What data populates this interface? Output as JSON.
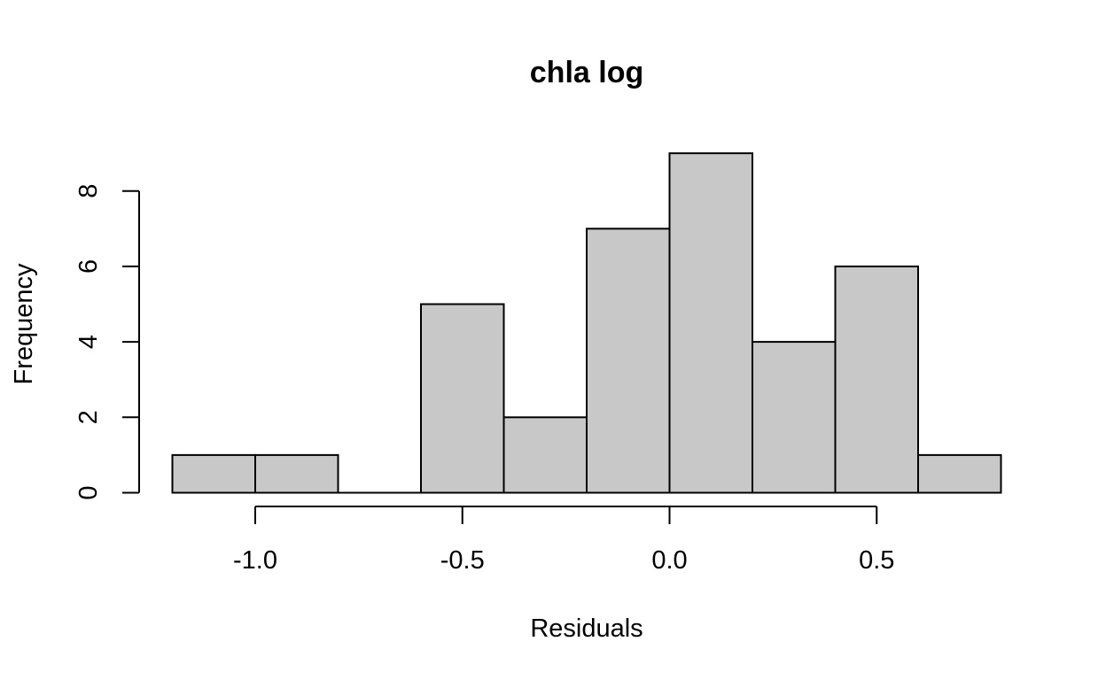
{
  "chart_data": {
    "type": "bar",
    "title": "chla log",
    "xlabel": "Residuals",
    "ylabel": "Frequency",
    "bins": [
      {
        "start": -1.2,
        "end": -1.0,
        "count": 1
      },
      {
        "start": -1.0,
        "end": -0.8,
        "count": 1
      },
      {
        "start": -0.8,
        "end": -0.6,
        "count": 0
      },
      {
        "start": -0.6,
        "end": -0.4,
        "count": 5
      },
      {
        "start": -0.4,
        "end": -0.2,
        "count": 2
      },
      {
        "start": -0.2,
        "end": 0.0,
        "count": 7
      },
      {
        "start": 0.0,
        "end": 0.2,
        "count": 9
      },
      {
        "start": 0.2,
        "end": 0.4,
        "count": 4
      },
      {
        "start": 0.4,
        "end": 0.6,
        "count": 6
      },
      {
        "start": 0.6,
        "end": 0.8,
        "count": 1
      }
    ],
    "x_ticks": [
      {
        "value": -1.0,
        "label": "-1.0"
      },
      {
        "value": -0.5,
        "label": "-0.5"
      },
      {
        "value": 0.0,
        "label": "0.0"
      },
      {
        "value": 0.5,
        "label": "0.5"
      }
    ],
    "y_ticks": [
      {
        "value": 0,
        "label": "0"
      },
      {
        "value": 2,
        "label": "2"
      },
      {
        "value": 4,
        "label": "4"
      },
      {
        "value": 6,
        "label": "6"
      },
      {
        "value": 8,
        "label": "8"
      }
    ],
    "xlim": [
      -1.2,
      0.8
    ],
    "ylim": [
      0,
      9
    ],
    "bar_color": "#c8c8c8",
    "edge_color": "#000000",
    "grid": false,
    "legend": "none"
  }
}
